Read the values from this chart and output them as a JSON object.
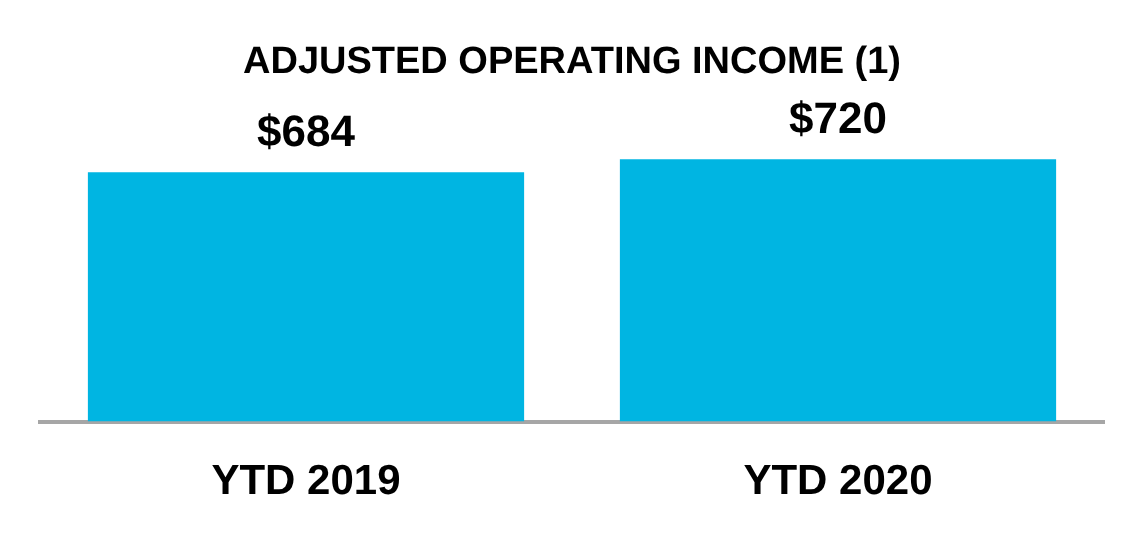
{
  "chart_data": {
    "type": "bar",
    "title": "ADJUSTED OPERATING INCOME (1)",
    "categories": [
      "YTD 2019",
      "YTD 2020"
    ],
    "values": [
      684,
      720
    ],
    "value_labels": [
      "$684",
      "$720"
    ],
    "color": "#00b5e2",
    "grid": false,
    "legend": false
  }
}
